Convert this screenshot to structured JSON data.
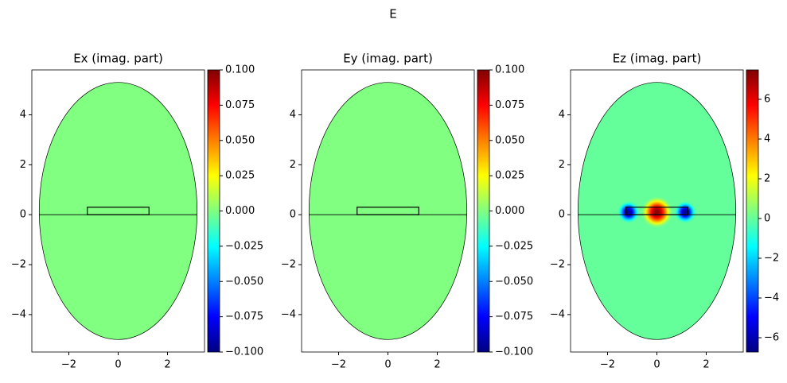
{
  "title": "E",
  "chart_data": [
    {
      "type": "field",
      "title": "Ex (imag. part)",
      "xlim": [
        -3.5,
        3.5
      ],
      "ylim": [
        -5.5,
        5.8
      ],
      "xticks": [
        {
          "value": -2,
          "label": "−2"
        },
        0,
        2
      ],
      "yticks": [
        {
          "value": -4,
          "label": "−4"
        },
        {
          "value": -2,
          "label": "−2"
        },
        0,
        2,
        4
      ],
      "clim": [
        -0.1,
        0.1
      ],
      "cticks": [
        {
          "value": -0.1,
          "label": "−0.100"
        },
        {
          "value": -0.075,
          "label": "−0.075"
        },
        {
          "value": -0.05,
          "label": "−0.050"
        },
        {
          "value": -0.025,
          "label": "−0.025"
        },
        {
          "value": 0,
          "label": "0.000"
        },
        {
          "value": 0.025,
          "label": "0.025"
        },
        {
          "value": 0.05,
          "label": "0.050"
        },
        {
          "value": 0.075,
          "label": "0.075"
        },
        {
          "value": 0.1,
          "label": "0.100"
        }
      ],
      "domain": {
        "x": [
          -3.2,
          3.2
        ],
        "y": [
          -5,
          5.3
        ]
      },
      "core": {
        "x": [
          -1.25,
          1.25
        ],
        "y": [
          0,
          0.3
        ]
      },
      "field": {
        "background": 0,
        "peaks": []
      }
    },
    {
      "type": "field",
      "title": "Ey (imag. part)",
      "xlim": [
        -3.5,
        3.5
      ],
      "ylim": [
        -5.5,
        5.8
      ],
      "xticks": [
        {
          "value": -2,
          "label": "−2"
        },
        0,
        2
      ],
      "yticks": [
        {
          "value": -4,
          "label": "−4"
        },
        {
          "value": -2,
          "label": "−2"
        },
        0,
        2,
        4
      ],
      "clim": [
        -0.1,
        0.1
      ],
      "cticks": [
        {
          "value": -0.1,
          "label": "−0.100"
        },
        {
          "value": -0.075,
          "label": "−0.075"
        },
        {
          "value": -0.05,
          "label": "−0.050"
        },
        {
          "value": -0.025,
          "label": "−0.025"
        },
        {
          "value": 0,
          "label": "0.000"
        },
        {
          "value": 0.025,
          "label": "0.025"
        },
        {
          "value": 0.05,
          "label": "0.050"
        },
        {
          "value": 0.075,
          "label": "0.075"
        },
        {
          "value": 0.1,
          "label": "0.100"
        }
      ],
      "domain": {
        "x": [
          -3.2,
          3.2
        ],
        "y": [
          -5,
          5.3
        ]
      },
      "core": {
        "x": [
          -1.25,
          1.25
        ],
        "y": [
          0,
          0.3
        ]
      },
      "field": {
        "background": 0,
        "peaks": []
      }
    },
    {
      "type": "field",
      "title": "Ez (imag. part)",
      "xlim": [
        -3.5,
        3.5
      ],
      "ylim": [
        -5.5,
        5.8
      ],
      "xticks": [
        {
          "value": -2,
          "label": "−2"
        },
        0,
        2
      ],
      "yticks": [
        {
          "value": -4,
          "label": "−4"
        },
        {
          "value": -2,
          "label": "−2"
        },
        0,
        2,
        4
      ],
      "clim": [
        -6.72,
        7.48
      ],
      "cticks": [
        {
          "value": -6,
          "label": "−6"
        },
        {
          "value": -4,
          "label": "−4"
        },
        {
          "value": -2,
          "label": "−2"
        },
        0,
        2,
        4,
        6
      ],
      "domain": {
        "x": [
          -3.2,
          3.2
        ],
        "y": [
          -5,
          5.3
        ]
      },
      "core": {
        "x": [
          -1.25,
          1.25
        ],
        "y": [
          0,
          0.3
        ]
      },
      "field": {
        "background": 0,
        "peaks": [
          {
            "x": 0,
            "y": 0.1,
            "value": 7.4,
            "radius": 0.65
          },
          {
            "x": -1.15,
            "y": 0.1,
            "value": -6.5,
            "radius": 0.45
          },
          {
            "x": 1.15,
            "y": 0.1,
            "value": -6.5,
            "radius": 0.45
          }
        ]
      }
    }
  ]
}
